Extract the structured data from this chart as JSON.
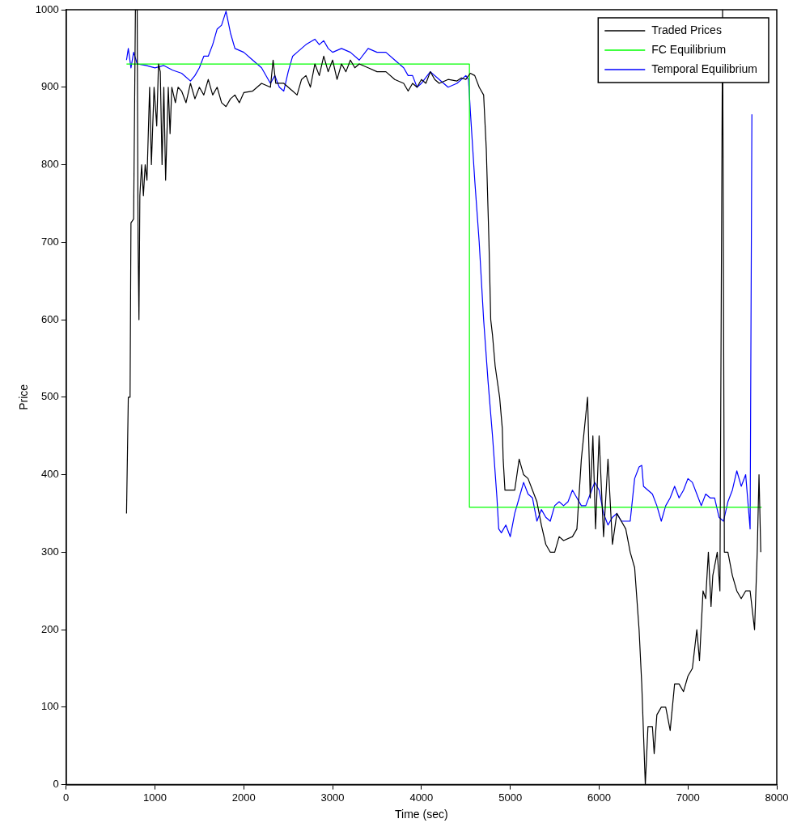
{
  "chart_data": {
    "type": "line",
    "xlabel": "Time (sec)",
    "ylabel": "Price",
    "xlim": [
      0,
      8000
    ],
    "ylim": [
      0,
      1000
    ],
    "xticks": [
      0,
      1000,
      2000,
      3000,
      4000,
      5000,
      6000,
      7000,
      8000
    ],
    "yticks": [
      0,
      100,
      200,
      300,
      400,
      500,
      600,
      700,
      800,
      900,
      1000
    ],
    "grid": false,
    "legend": "top right",
    "marker": "none",
    "line_style": "solid",
    "series": [
      {
        "name": "Traded Prices",
        "color": "#000000",
        "x": [
          680,
          700,
          720,
          730,
          760,
          780,
          800,
          810,
          820,
          830,
          850,
          870,
          890,
          910,
          940,
          960,
          990,
          1020,
          1040,
          1060,
          1080,
          1100,
          1120,
          1150,
          1170,
          1190,
          1230,
          1260,
          1300,
          1350,
          1400,
          1450,
          1500,
          1550,
          1600,
          1650,
          1700,
          1750,
          1800,
          1850,
          1900,
          1950,
          2000,
          2100,
          2200,
          2300,
          2330,
          2360,
          2450,
          2500,
          2550,
          2600,
          2650,
          2700,
          2750,
          2800,
          2850,
          2900,
          2950,
          3000,
          3050,
          3100,
          3150,
          3200,
          3250,
          3300,
          3400,
          3500,
          3600,
          3700,
          3800,
          3850,
          3900,
          3950,
          4000,
          4050,
          4100,
          4150,
          4200,
          4300,
          4400,
          4450,
          4500,
          4550,
          4600,
          4650,
          4700,
          4730,
          4760,
          4780,
          4800,
          4830,
          4880,
          4910,
          4920,
          4940,
          4960,
          5050,
          5100,
          5150,
          5200,
          5250,
          5300,
          5350,
          5400,
          5450,
          5500,
          5550,
          5600,
          5700,
          5750,
          5800,
          5870,
          5900,
          5930,
          5960,
          6000,
          6050,
          6100,
          6150,
          6200,
          6250,
          6300,
          6350,
          6400,
          6450,
          6480,
          6520,
          6550,
          6600,
          6620,
          6650,
          6700,
          6750,
          6800,
          6850,
          6900,
          6950,
          7000,
          7050,
          7100,
          7130,
          7170,
          7200,
          7230,
          7260,
          7280,
          7330,
          7360,
          7390,
          7410,
          7450,
          7500,
          7550,
          7600,
          7650,
          7700,
          7750,
          7780,
          7800,
          7820
        ],
        "values": [
          350,
          500,
          500,
          725,
          730,
          1000,
          1000,
          700,
          600,
          760,
          800,
          760,
          800,
          780,
          900,
          800,
          900,
          850,
          930,
          920,
          800,
          900,
          780,
          900,
          840,
          900,
          880,
          900,
          895,
          880,
          905,
          885,
          900,
          890,
          910,
          890,
          900,
          880,
          875,
          885,
          890,
          880,
          893,
          895,
          905,
          900,
          935,
          905,
          905,
          900,
          895,
          890,
          910,
          915,
          900,
          930,
          915,
          940,
          920,
          935,
          910,
          930,
          920,
          935,
          925,
          930,
          925,
          920,
          920,
          910,
          905,
          895,
          905,
          900,
          910,
          905,
          920,
          910,
          905,
          910,
          908,
          912,
          910,
          918,
          915,
          900,
          890,
          820,
          700,
          600,
          580,
          540,
          500,
          460,
          420,
          380,
          380,
          380,
          420,
          400,
          395,
          380,
          365,
          335,
          310,
          300,
          300,
          320,
          315,
          320,
          330,
          420,
          500,
          370,
          450,
          330,
          450,
          320,
          420,
          310,
          350,
          340,
          330,
          300,
          280,
          200,
          130,
          0,
          75,
          75,
          40,
          90,
          100,
          100,
          70,
          130,
          130,
          120,
          140,
          150,
          200,
          160,
          250,
          240,
          300,
          230,
          270,
          300,
          250,
          1000,
          300,
          300,
          270,
          250,
          240,
          250,
          250,
          200,
          300,
          400,
          300
        ]
      },
      {
        "name": "FC Equilibrium",
        "color": "#00ff00",
        "x": [
          680,
          4540,
          4540,
          7830
        ],
        "values": [
          930,
          930,
          358,
          358
        ]
      },
      {
        "name": "Temporal Equilibrium",
        "color": "#0000ff",
        "x": [
          680,
          700,
          730,
          760,
          800,
          900,
          1000,
          1100,
          1200,
          1300,
          1400,
          1450,
          1500,
          1550,
          1600,
          1650,
          1700,
          1750,
          1800,
          1850,
          1900,
          2000,
          2100,
          2200,
          2300,
          2350,
          2400,
          2450,
          2500,
          2550,
          2600,
          2700,
          2800,
          2850,
          2900,
          2950,
          3000,
          3100,
          3200,
          3300,
          3400,
          3500,
          3600,
          3700,
          3800,
          3850,
          3900,
          3950,
          4000,
          4100,
          4200,
          4300,
          4400,
          4500,
          4530,
          4550,
          4600,
          4650,
          4700,
          4750,
          4800,
          4850,
          4870,
          4900,
          4950,
          5000,
          5050,
          5100,
          5150,
          5200,
          5250,
          5300,
          5350,
          5400,
          5450,
          5500,
          5550,
          5600,
          5650,
          5700,
          5750,
          5800,
          5850,
          5900,
          5950,
          6000,
          6050,
          6100,
          6150,
          6200,
          6250,
          6300,
          6350,
          6400,
          6450,
          6480,
          6500,
          6550,
          6600,
          6650,
          6700,
          6750,
          6800,
          6850,
          6900,
          6950,
          7000,
          7050,
          7100,
          7150,
          7200,
          7250,
          7300,
          7350,
          7400,
          7450,
          7500,
          7550,
          7600,
          7650,
          7700,
          7720
        ],
        "values": [
          935,
          950,
          925,
          945,
          930,
          928,
          925,
          928,
          922,
          918,
          908,
          915,
          925,
          940,
          940,
          955,
          975,
          980,
          998,
          970,
          950,
          945,
          935,
          925,
          905,
          915,
          900,
          895,
          920,
          940,
          945,
          955,
          962,
          955,
          960,
          950,
          945,
          950,
          945,
          935,
          950,
          945,
          945,
          935,
          925,
          915,
          915,
          900,
          905,
          920,
          910,
          900,
          905,
          915,
          910,
          870,
          780,
          700,
          600,
          520,
          450,
          370,
          330,
          325,
          335,
          320,
          350,
          370,
          390,
          375,
          370,
          340,
          355,
          345,
          340,
          360,
          365,
          360,
          365,
          380,
          370,
          360,
          360,
          375,
          390,
          380,
          350,
          335,
          345,
          350,
          340,
          340,
          340,
          395,
          410,
          412,
          385,
          380,
          375,
          360,
          340,
          360,
          370,
          385,
          370,
          380,
          395,
          390,
          375,
          360,
          375,
          370,
          370,
          345,
          340,
          365,
          380,
          405,
          385,
          400,
          330,
          865
        ]
      }
    ]
  }
}
